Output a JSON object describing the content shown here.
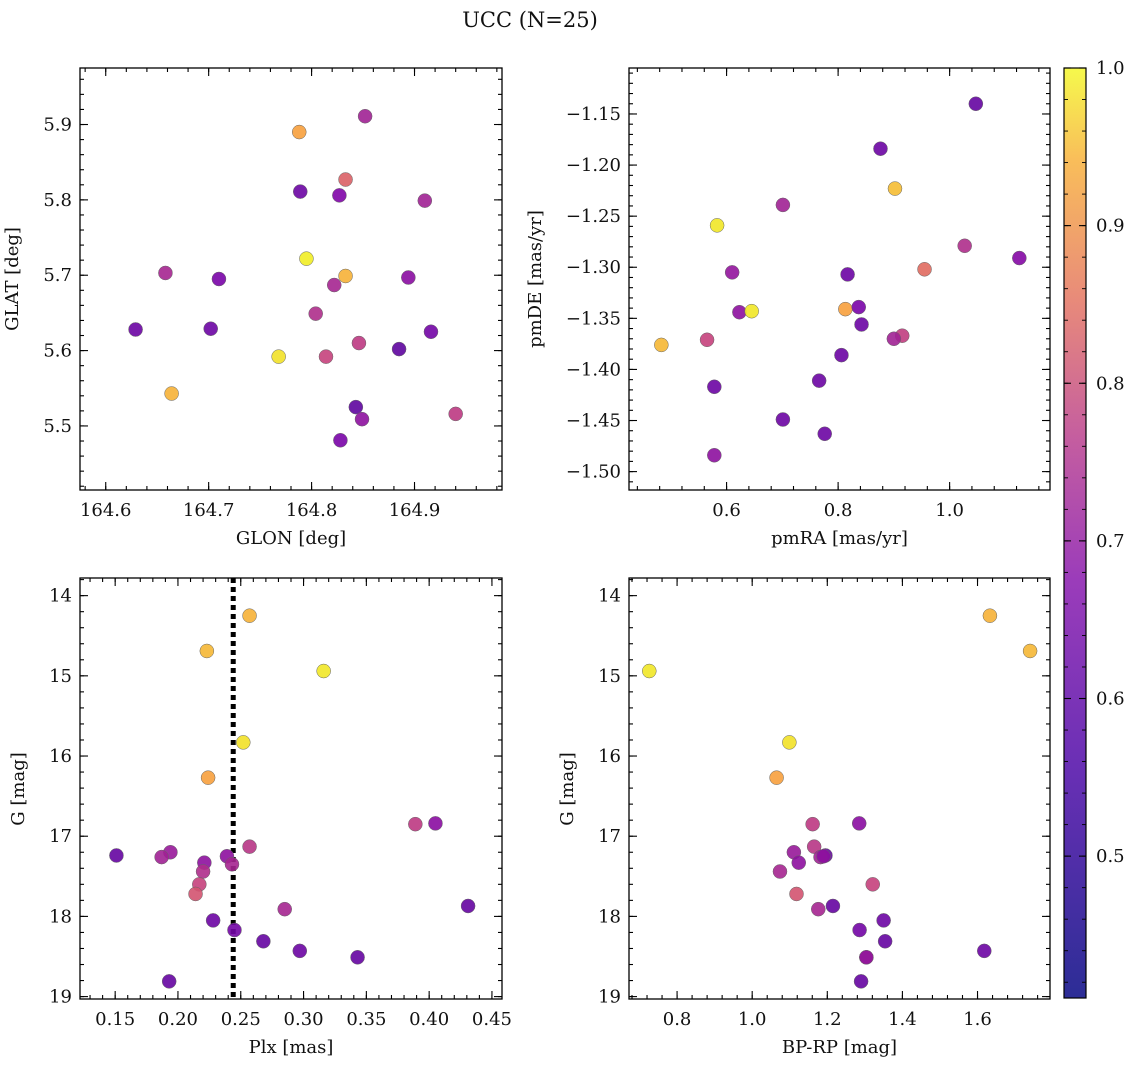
{
  "figure": {
    "title": "UCC (N=25)"
  },
  "colorbar": {
    "range": [
      0.41,
      1.0
    ],
    "colormap": "plasma",
    "tick_labels": [
      "0.5",
      "0.6",
      "0.7",
      "0.8",
      "0.9",
      "1.0"
    ]
  },
  "chart_data": [
    {
      "type": "scatter",
      "xlabel": "GLON [deg]",
      "ylabel": "GLAT [deg]",
      "xlim": [
        164.575,
        164.985
      ],
      "ylim": [
        5.415,
        5.975
      ],
      "xticks": [
        "164.6",
        "164.7",
        "164.8",
        "164.9"
      ],
      "yticks": [
        "5.5",
        "5.6",
        "5.7",
        "5.8",
        "5.9"
      ],
      "points": [
        {
          "x": 164.852,
          "y": 5.911,
          "c": 0.57
        },
        {
          "x": 164.788,
          "y": 5.89,
          "c": 0.85
        },
        {
          "x": 164.833,
          "y": 5.827,
          "c": 0.72
        },
        {
          "x": 164.789,
          "y": 5.811,
          "c": 0.47
        },
        {
          "x": 164.827,
          "y": 5.806,
          "c": 0.5
        },
        {
          "x": 164.91,
          "y": 5.799,
          "c": 0.57
        },
        {
          "x": 164.795,
          "y": 5.722,
          "c": 0.98
        },
        {
          "x": 164.658,
          "y": 5.703,
          "c": 0.58
        },
        {
          "x": 164.833,
          "y": 5.699,
          "c": 0.88
        },
        {
          "x": 164.71,
          "y": 5.695,
          "c": 0.49
        },
        {
          "x": 164.894,
          "y": 5.697,
          "c": 0.52
        },
        {
          "x": 164.822,
          "y": 5.687,
          "c": 0.58
        },
        {
          "x": 164.804,
          "y": 5.649,
          "c": 0.6
        },
        {
          "x": 164.629,
          "y": 5.628,
          "c": 0.47
        },
        {
          "x": 164.702,
          "y": 5.629,
          "c": 0.47
        },
        {
          "x": 164.916,
          "y": 5.625,
          "c": 0.48
        },
        {
          "x": 164.846,
          "y": 5.61,
          "c": 0.63
        },
        {
          "x": 164.885,
          "y": 5.602,
          "c": 0.45
        },
        {
          "x": 164.768,
          "y": 5.592,
          "c": 0.96
        },
        {
          "x": 164.814,
          "y": 5.592,
          "c": 0.65
        },
        {
          "x": 164.664,
          "y": 5.543,
          "c": 0.88
        },
        {
          "x": 164.843,
          "y": 5.525,
          "c": 0.45
        },
        {
          "x": 164.94,
          "y": 5.516,
          "c": 0.63
        },
        {
          "x": 164.849,
          "y": 5.509,
          "c": 0.53
        },
        {
          "x": 164.828,
          "y": 5.481,
          "c": 0.49
        }
      ]
    },
    {
      "type": "scatter",
      "xlabel": "pmRA [mas/yr]",
      "ylabel": "pmDE [mas/yr]",
      "xlim": [
        0.425,
        1.18
      ],
      "ylim": [
        -1.518,
        -1.105
      ],
      "xticks": [
        "0.6",
        "0.8",
        "1.0"
      ],
      "yticks": [
        "−1.15",
        "−1.20",
        "−1.25",
        "−1.30",
        "−1.35",
        "−1.40",
        "−1.45",
        "−1.50"
      ],
      "points": [
        {
          "x": 1.047,
          "y": -1.14,
          "c": 0.46
        },
        {
          "x": 0.876,
          "y": -1.184,
          "c": 0.47
        },
        {
          "x": 0.902,
          "y": -1.223,
          "c": 0.9
        },
        {
          "x": 0.701,
          "y": -1.239,
          "c": 0.57
        },
        {
          "x": 0.583,
          "y": -1.259,
          "c": 0.97
        },
        {
          "x": 1.027,
          "y": -1.279,
          "c": 0.6
        },
        {
          "x": 1.125,
          "y": -1.291,
          "c": 0.51
        },
        {
          "x": 0.955,
          "y": -1.302,
          "c": 0.74
        },
        {
          "x": 0.61,
          "y": -1.305,
          "c": 0.54
        },
        {
          "x": 0.817,
          "y": -1.307,
          "c": 0.47
        },
        {
          "x": 0.623,
          "y": -1.344,
          "c": 0.53
        },
        {
          "x": 0.645,
          "y": -1.343,
          "c": 0.97
        },
        {
          "x": 0.813,
          "y": -1.341,
          "c": 0.85
        },
        {
          "x": 0.837,
          "y": -1.339,
          "c": 0.49
        },
        {
          "x": 0.842,
          "y": -1.356,
          "c": 0.47
        },
        {
          "x": 0.565,
          "y": -1.371,
          "c": 0.65
        },
        {
          "x": 0.915,
          "y": -1.367,
          "c": 0.64
        },
        {
          "x": 0.9,
          "y": -1.37,
          "c": 0.57
        },
        {
          "x": 0.483,
          "y": -1.376,
          "c": 0.89
        },
        {
          "x": 0.806,
          "y": -1.386,
          "c": 0.47
        },
        {
          "x": 0.766,
          "y": -1.411,
          "c": 0.47
        },
        {
          "x": 0.578,
          "y": -1.417,
          "c": 0.47
        },
        {
          "x": 0.701,
          "y": -1.449,
          "c": 0.47
        },
        {
          "x": 0.776,
          "y": -1.463,
          "c": 0.47
        },
        {
          "x": 0.578,
          "y": -1.484,
          "c": 0.53
        }
      ]
    },
    {
      "type": "scatter",
      "xlabel": "Plx [mas]",
      "ylabel": "G [mag]",
      "xlim": [
        0.122,
        0.458
      ],
      "ylim": [
        19.03,
        13.78
      ],
      "xticks": [
        "0.15",
        "0.20",
        "0.25",
        "0.30",
        "0.35",
        "0.40",
        "0.45"
      ],
      "yticks": [
        "14",
        "15",
        "16",
        "17",
        "18",
        "19"
      ],
      "vline": 0.244,
      "points": [
        {
          "x": 0.257,
          "y": 14.25,
          "c": 0.88
        },
        {
          "x": 0.223,
          "y": 14.69,
          "c": 0.89
        },
        {
          "x": 0.316,
          "y": 14.94,
          "c": 0.97
        },
        {
          "x": 0.252,
          "y": 15.83,
          "c": 0.96
        },
        {
          "x": 0.224,
          "y": 16.27,
          "c": 0.85
        },
        {
          "x": 0.389,
          "y": 16.85,
          "c": 0.63
        },
        {
          "x": 0.405,
          "y": 16.84,
          "c": 0.52
        },
        {
          "x": 0.257,
          "y": 17.13,
          "c": 0.62
        },
        {
          "x": 0.194,
          "y": 17.2,
          "c": 0.55
        },
        {
          "x": 0.151,
          "y": 17.24,
          "c": 0.46
        },
        {
          "x": 0.187,
          "y": 17.26,
          "c": 0.57
        },
        {
          "x": 0.239,
          "y": 17.25,
          "c": 0.53
        },
        {
          "x": 0.221,
          "y": 17.33,
          "c": 0.53
        },
        {
          "x": 0.243,
          "y": 17.35,
          "c": 0.58
        },
        {
          "x": 0.22,
          "y": 17.44,
          "c": 0.6
        },
        {
          "x": 0.217,
          "y": 17.6,
          "c": 0.65
        },
        {
          "x": 0.214,
          "y": 17.72,
          "c": 0.69
        },
        {
          "x": 0.431,
          "y": 17.87,
          "c": 0.46
        },
        {
          "x": 0.285,
          "y": 17.91,
          "c": 0.58
        },
        {
          "x": 0.228,
          "y": 18.05,
          "c": 0.47
        },
        {
          "x": 0.245,
          "y": 18.17,
          "c": 0.48
        },
        {
          "x": 0.268,
          "y": 18.31,
          "c": 0.46
        },
        {
          "x": 0.297,
          "y": 18.43,
          "c": 0.47
        },
        {
          "x": 0.343,
          "y": 18.51,
          "c": 0.46
        },
        {
          "x": 0.193,
          "y": 18.81,
          "c": 0.46
        }
      ]
    },
    {
      "type": "scatter",
      "xlabel": "BP-RP [mag]",
      "ylabel": "G [mag]",
      "xlim": [
        0.672,
        1.793
      ],
      "ylim": [
        19.03,
        13.78
      ],
      "xticks": [
        "0.8",
        "1.0",
        "1.2",
        "1.4",
        "1.6"
      ],
      "yticks": [
        "14",
        "15",
        "16",
        "17",
        "18",
        "19"
      ],
      "points": [
        {
          "x": 1.633,
          "y": 14.25,
          "c": 0.88
        },
        {
          "x": 1.74,
          "y": 14.69,
          "c": 0.89
        },
        {
          "x": 0.726,
          "y": 14.94,
          "c": 0.97
        },
        {
          "x": 1.099,
          "y": 15.83,
          "c": 0.96
        },
        {
          "x": 1.065,
          "y": 16.27,
          "c": 0.85
        },
        {
          "x": 1.161,
          "y": 16.85,
          "c": 0.63
        },
        {
          "x": 1.285,
          "y": 16.84,
          "c": 0.52
        },
        {
          "x": 1.165,
          "y": 17.13,
          "c": 0.62
        },
        {
          "x": 1.111,
          "y": 17.2,
          "c": 0.55
        },
        {
          "x": 1.195,
          "y": 17.24,
          "c": 0.46
        },
        {
          "x": 1.182,
          "y": 17.26,
          "c": 0.57
        },
        {
          "x": 1.19,
          "y": 17.25,
          "c": 0.53
        },
        {
          "x": 1.124,
          "y": 17.33,
          "c": 0.53
        },
        {
          "x": 1.074,
          "y": 17.44,
          "c": 0.58
        },
        {
          "x": 1.321,
          "y": 17.6,
          "c": 0.65
        },
        {
          "x": 1.118,
          "y": 17.72,
          "c": 0.69
        },
        {
          "x": 1.215,
          "y": 17.87,
          "c": 0.46
        },
        {
          "x": 1.176,
          "y": 17.91,
          "c": 0.58
        },
        {
          "x": 1.35,
          "y": 18.05,
          "c": 0.47
        },
        {
          "x": 1.286,
          "y": 18.17,
          "c": 0.48
        },
        {
          "x": 1.354,
          "y": 18.31,
          "c": 0.46
        },
        {
          "x": 1.618,
          "y": 18.43,
          "c": 0.47
        },
        {
          "x": 1.304,
          "y": 18.51,
          "c": 0.46
        },
        {
          "x": 1.29,
          "y": 18.81,
          "c": 0.46
        },
        {
          "x": 1.304,
          "y": 18.51,
          "c": 0.55
        }
      ]
    }
  ]
}
